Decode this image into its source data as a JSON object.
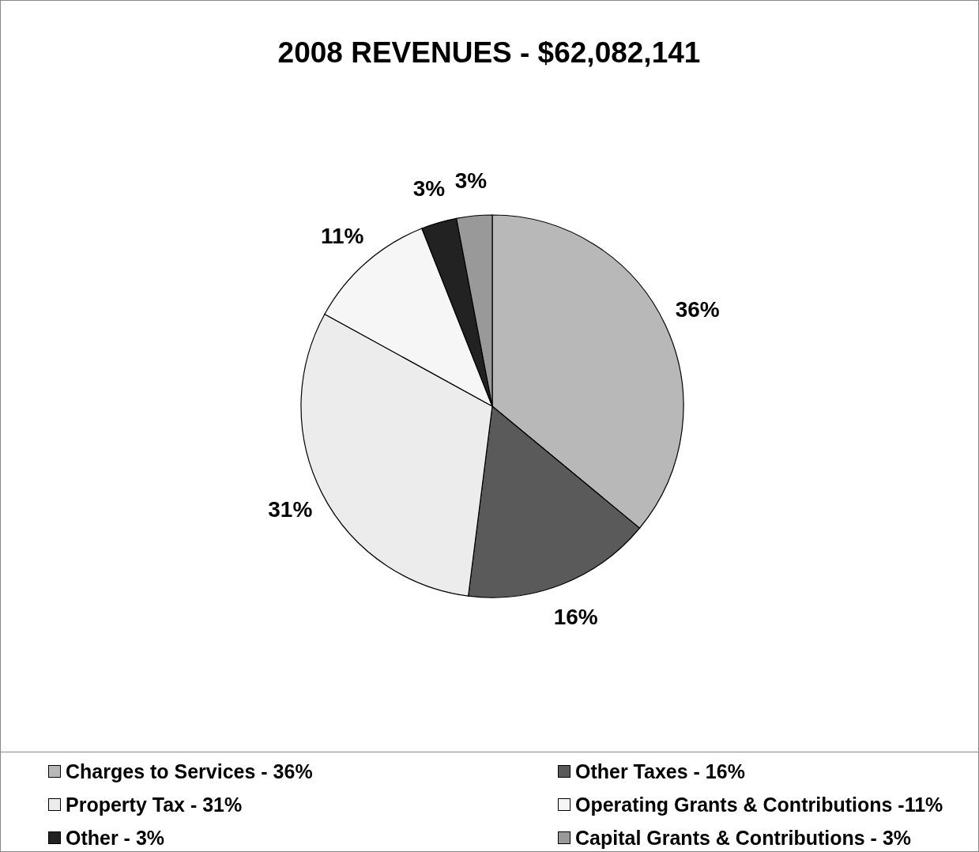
{
  "chart_data": {
    "type": "pie",
    "title": "2008 REVENUES - $62,082,141",
    "categories": [
      "Charges to Services - 36%",
      "Other Taxes - 16%",
      "Property Tax - 31%",
      "Operating Grants & Contributions -11%",
      "Other - 3%",
      "Capital Grants & Contributions - 3%"
    ],
    "values": [
      36,
      16,
      31,
      11,
      3,
      3
    ],
    "value_labels": [
      "36%",
      "16%",
      "31%",
      "11%",
      "3%",
      "3%"
    ],
    "colors": [
      "#b8b8b8",
      "#5a5a5a",
      "#ececec",
      "#f6f6f6",
      "#222222",
      "#999999"
    ],
    "legend": "bottom"
  }
}
